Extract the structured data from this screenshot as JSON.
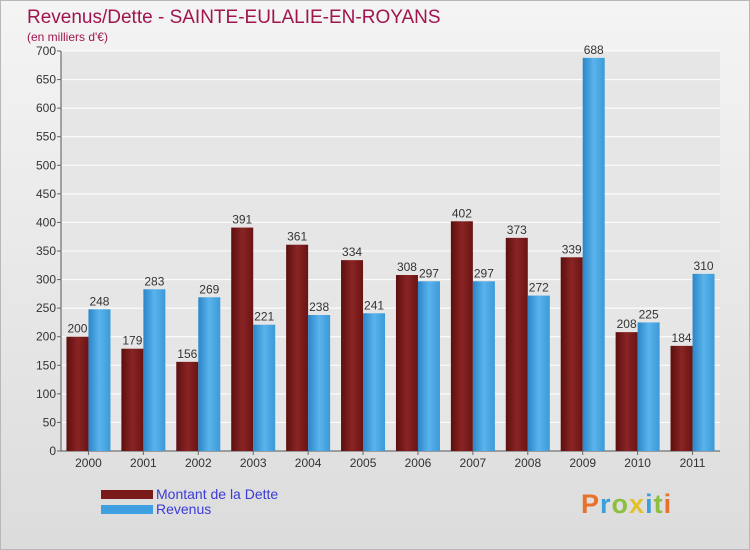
{
  "title": "Revenus/Dette - SAINTE-EULALIE-EN-ROYANS",
  "subtitle": "(en milliers d'€)",
  "chart_data": {
    "type": "bar",
    "title": "Revenus/Dette - SAINTE-EULALIE-EN-ROYANS",
    "ylabel": "(en milliers d'€)",
    "categories": [
      "2000",
      "2001",
      "2002",
      "2003",
      "2004",
      "2005",
      "2006",
      "2007",
      "2008",
      "2009",
      "2010",
      "2011"
    ],
    "series": [
      {
        "name": "Montant de la Dette",
        "color": "#7a1a1a",
        "values": [
          200,
          179,
          156,
          391,
          361,
          334,
          308,
          402,
          373,
          339,
          208,
          184
        ]
      },
      {
        "name": "Revenus",
        "color": "#3f9fe0",
        "values": [
          248,
          283,
          269,
          221,
          238,
          241,
          297,
          297,
          272,
          688,
          225,
          310
        ]
      }
    ],
    "ylim": [
      0,
      700
    ],
    "yticks": [
      0,
      50,
      100,
      150,
      200,
      250,
      300,
      350,
      400,
      450,
      500,
      550,
      600,
      650,
      700
    ],
    "grid": true,
    "legend": "bottom-left"
  },
  "legend": {
    "debt_label": "Montant de la Dette",
    "revenue_label": "Revenus"
  },
  "logo": {
    "text": "Proxiti",
    "letters": [
      {
        "char": "P",
        "color": "#e8702a"
      },
      {
        "char": "r",
        "color": "#3aa0dc"
      },
      {
        "char": "o",
        "color": "#8cbf3f"
      },
      {
        "char": "x",
        "color": "#e2c12a"
      },
      {
        "char": "i",
        "color": "#3aa0dc"
      },
      {
        "char": "t",
        "color": "#8cbf3f"
      },
      {
        "char": "i",
        "color": "#e8702a"
      }
    ]
  }
}
